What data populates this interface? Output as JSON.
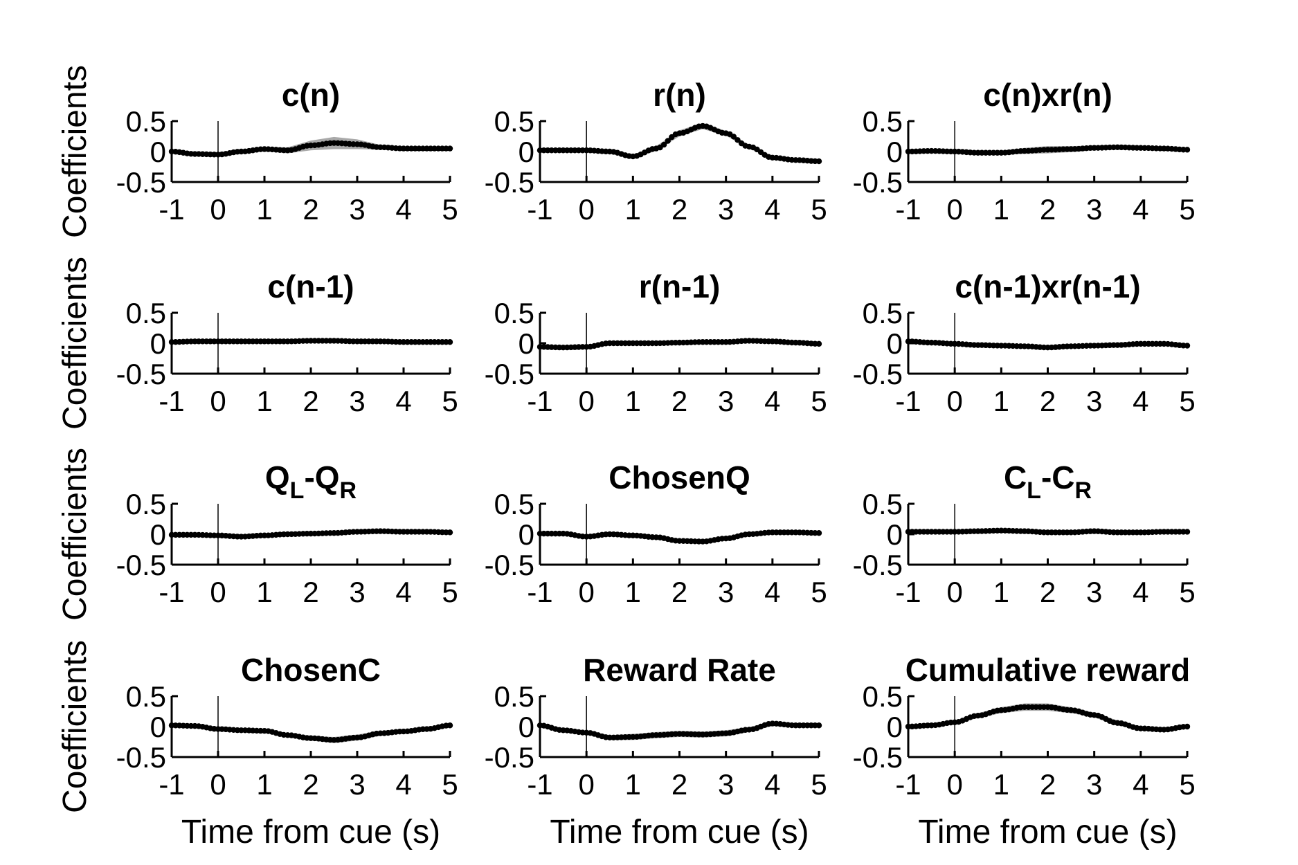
{
  "figure": {
    "ylabel": "Coefficients",
    "xlabel": "Time from cue (s)"
  },
  "chart_data": [
    {
      "type": "line",
      "title": "c(n)",
      "title_parts": [
        {
          "t": "c(n)"
        }
      ],
      "xlabel": "",
      "ylabel": "Coefficients",
      "xlim": [
        -1,
        5
      ],
      "ylim": [
        -0.5,
        0.5
      ],
      "xticks": [
        "-1",
        "0",
        "1",
        "2",
        "3",
        "4",
        "5"
      ],
      "yticks": [
        "0.5",
        "0",
        "-0.5"
      ],
      "x": [
        -1,
        -0.5,
        0,
        0.5,
        1,
        1.5,
        2,
        2.5,
        3,
        3.5,
        4,
        4.5,
        5
      ],
      "values": [
        0,
        -0.04,
        -0.05,
        0.0,
        0.04,
        0.02,
        0.1,
        0.14,
        0.12,
        0.07,
        0.05,
        0.05,
        0.05
      ],
      "band": [
        0.01,
        0.01,
        0.01,
        0.02,
        0.03,
        0.05,
        0.08,
        0.1,
        0.08,
        0.04,
        0.02,
        0.01,
        0.01
      ]
    },
    {
      "type": "line",
      "title": "r(n)",
      "title_parts": [
        {
          "t": "r(n)"
        }
      ],
      "xlabel": "",
      "ylabel": "",
      "xlim": [
        -1,
        5
      ],
      "ylim": [
        -0.5,
        0.5
      ],
      "xticks": [
        "-1",
        "0",
        "1",
        "2",
        "3",
        "4",
        "5"
      ],
      "yticks": [
        "0.5",
        "0",
        "-0.5"
      ],
      "x": [
        -1,
        -0.5,
        0,
        0.5,
        1,
        1.5,
        2,
        2.5,
        3,
        3.5,
        4,
        4.5,
        5
      ],
      "values": [
        0.02,
        0.02,
        0.02,
        0.0,
        -0.08,
        0.05,
        0.3,
        0.42,
        0.3,
        0.08,
        -0.1,
        -0.14,
        -0.16
      ],
      "band": [
        0.01,
        0.01,
        0.01,
        0.02,
        0.03,
        0.04,
        0.05,
        0.05,
        0.04,
        0.03,
        0.02,
        0.02,
        0.02
      ]
    },
    {
      "type": "line",
      "title": "c(n)xr(n)",
      "title_parts": [
        {
          "t": "c(n)xr(n)"
        }
      ],
      "xlabel": "",
      "ylabel": "",
      "xlim": [
        -1,
        5
      ],
      "ylim": [
        -0.5,
        0.5
      ],
      "xticks": [
        "-1",
        "0",
        "1",
        "2",
        "3",
        "4",
        "5"
      ],
      "yticks": [
        "0.5",
        "0",
        "-0.5"
      ],
      "x": [
        -1,
        -0.5,
        0,
        0.5,
        1,
        1.5,
        2,
        2.5,
        3,
        3.5,
        4,
        4.5,
        5
      ],
      "values": [
        0,
        0.01,
        0.0,
        -0.02,
        -0.02,
        0.01,
        0.03,
        0.04,
        0.06,
        0.07,
        0.06,
        0.05,
        0.03
      ],
      "band": [
        0.01,
        0.01,
        0.01,
        0.02,
        0.03,
        0.05,
        0.06,
        0.05,
        0.04,
        0.03,
        0.02,
        0.01,
        0.01
      ]
    },
    {
      "type": "line",
      "title": "c(n-1)",
      "title_parts": [
        {
          "t": "c(n-1)"
        }
      ],
      "xlabel": "",
      "ylabel": "Coefficients",
      "xlim": [
        -1,
        5
      ],
      "ylim": [
        -0.5,
        0.5
      ],
      "xticks": [
        "-1",
        "0",
        "1",
        "2",
        "3",
        "4",
        "5"
      ],
      "yticks": [
        "0.5",
        "0",
        "-0.5"
      ],
      "x": [
        -1,
        -0.5,
        0,
        0.5,
        1,
        1.5,
        2,
        2.5,
        3,
        3.5,
        4,
        4.5,
        5
      ],
      "values": [
        0.02,
        0.03,
        0.03,
        0.03,
        0.03,
        0.03,
        0.04,
        0.04,
        0.03,
        0.03,
        0.02,
        0.02,
        0.02
      ],
      "band": [
        0.01,
        0.01,
        0.01,
        0.01,
        0.01,
        0.01,
        0.01,
        0.01,
        0.01,
        0.01,
        0.01,
        0.01,
        0.01
      ]
    },
    {
      "type": "line",
      "title": "r(n-1)",
      "title_parts": [
        {
          "t": "r(n-1)"
        }
      ],
      "xlabel": "",
      "ylabel": "",
      "xlim": [
        -1,
        5
      ],
      "ylim": [
        -0.5,
        0.5
      ],
      "xticks": [
        "-1",
        "0",
        "1",
        "2",
        "3",
        "4",
        "5"
      ],
      "yticks": [
        "0.5",
        "0",
        "-0.5"
      ],
      "x": [
        -1,
        -0.5,
        0,
        0.5,
        1,
        1.5,
        2,
        2.5,
        3,
        3.5,
        4,
        4.5,
        5
      ],
      "values": [
        -0.06,
        -0.07,
        -0.06,
        0.0,
        0.0,
        0.0,
        0.01,
        0.02,
        0.02,
        0.04,
        0.03,
        0.01,
        -0.01
      ],
      "band": [
        0.01,
        0.01,
        0.01,
        0.01,
        0.01,
        0.01,
        0.01,
        0.01,
        0.01,
        0.01,
        0.01,
        0.01,
        0.01
      ]
    },
    {
      "type": "line",
      "title": "c(n-1)xr(n-1)",
      "title_parts": [
        {
          "t": "c(n-1)xr(n-1)"
        }
      ],
      "xlabel": "",
      "ylabel": "",
      "xlim": [
        -1,
        5
      ],
      "ylim": [
        -0.5,
        0.5
      ],
      "xticks": [
        "-1",
        "0",
        "1",
        "2",
        "3",
        "4",
        "5"
      ],
      "yticks": [
        "0.5",
        "0",
        "-0.5"
      ],
      "x": [
        -1,
        -0.5,
        0,
        0.5,
        1,
        1.5,
        2,
        2.5,
        3,
        3.5,
        4,
        4.5,
        5
      ],
      "values": [
        0.03,
        0.01,
        -0.01,
        -0.03,
        -0.04,
        -0.05,
        -0.07,
        -0.05,
        -0.04,
        -0.03,
        -0.01,
        -0.01,
        -0.04
      ],
      "band": [
        0.01,
        0.01,
        0.01,
        0.01,
        0.01,
        0.01,
        0.01,
        0.01,
        0.01,
        0.01,
        0.01,
        0.01,
        0.01
      ]
    },
    {
      "type": "line",
      "title": "QL-QR",
      "title_parts": [
        {
          "t": "Q"
        },
        {
          "t": "L",
          "sub": true
        },
        {
          "t": "-Q"
        },
        {
          "t": "R",
          "sub": true
        }
      ],
      "xlabel": "",
      "ylabel": "Coefficients",
      "xlim": [
        -1,
        5
      ],
      "ylim": [
        -0.5,
        0.5
      ],
      "xticks": [
        "-1",
        "0",
        "1",
        "2",
        "3",
        "4",
        "5"
      ],
      "yticks": [
        "0.5",
        "0",
        "-0.5"
      ],
      "x": [
        -1,
        -0.5,
        0,
        0.5,
        1,
        1.5,
        2,
        2.5,
        3,
        3.5,
        4,
        4.5,
        5
      ],
      "values": [
        -0.01,
        -0.01,
        -0.02,
        -0.04,
        -0.02,
        0.0,
        0.01,
        0.02,
        0.04,
        0.05,
        0.04,
        0.04,
        0.03
      ],
      "band": [
        0.01,
        0.01,
        0.01,
        0.01,
        0.01,
        0.01,
        0.01,
        0.01,
        0.01,
        0.01,
        0.01,
        0.01,
        0.01
      ]
    },
    {
      "type": "line",
      "title": "ChosenQ",
      "title_parts": [
        {
          "t": "ChosenQ"
        }
      ],
      "xlabel": "",
      "ylabel": "",
      "xlim": [
        -1,
        5
      ],
      "ylim": [
        -0.5,
        0.5
      ],
      "xticks": [
        "-1",
        "0",
        "1",
        "2",
        "3",
        "4",
        "5"
      ],
      "yticks": [
        "0.5",
        "0",
        "-0.5"
      ],
      "x": [
        -1,
        -0.5,
        0,
        0.5,
        1,
        1.5,
        2,
        2.5,
        3,
        3.5,
        4,
        4.5,
        5
      ],
      "values": [
        0.01,
        0.01,
        -0.04,
        0.0,
        -0.02,
        -0.05,
        -0.11,
        -0.12,
        -0.07,
        0.0,
        0.03,
        0.03,
        0.02
      ],
      "band": [
        0.01,
        0.01,
        0.01,
        0.01,
        0.01,
        0.02,
        0.03,
        0.03,
        0.02,
        0.01,
        0.01,
        0.01,
        0.01
      ]
    },
    {
      "type": "line",
      "title": "CL-CR",
      "title_parts": [
        {
          "t": "C"
        },
        {
          "t": "L",
          "sub": true
        },
        {
          "t": "-C"
        },
        {
          "t": "R",
          "sub": true
        }
      ],
      "xlabel": "",
      "ylabel": "",
      "xlim": [
        -1,
        5
      ],
      "ylim": [
        -0.5,
        0.5
      ],
      "xticks": [
        "-1",
        "0",
        "1",
        "2",
        "3",
        "4",
        "5"
      ],
      "yticks": [
        "0.5",
        "0",
        "-0.5"
      ],
      "x": [
        -1,
        -0.5,
        0,
        0.5,
        1,
        1.5,
        2,
        2.5,
        3,
        3.5,
        4,
        4.5,
        5
      ],
      "values": [
        0.04,
        0.04,
        0.04,
        0.05,
        0.06,
        0.05,
        0.03,
        0.03,
        0.05,
        0.03,
        0.03,
        0.04,
        0.04
      ],
      "band": [
        0.01,
        0.01,
        0.01,
        0.01,
        0.01,
        0.01,
        0.01,
        0.01,
        0.01,
        0.01,
        0.01,
        0.01,
        0.01
      ]
    },
    {
      "type": "line",
      "title": "ChosenC",
      "title_parts": [
        {
          "t": "ChosenC"
        }
      ],
      "xlabel": "Time from cue (s)",
      "ylabel": "Coefficients",
      "xlim": [
        -1,
        5
      ],
      "ylim": [
        -0.5,
        0.5
      ],
      "xticks": [
        "-1",
        "0",
        "1",
        "2",
        "3",
        "4",
        "5"
      ],
      "yticks": [
        "0.5",
        "0",
        "-0.5"
      ],
      "x": [
        -1,
        -0.5,
        0,
        0.5,
        1,
        1.5,
        2,
        2.5,
        3,
        3.5,
        4,
        4.5,
        5
      ],
      "values": [
        0.02,
        0.01,
        -0.04,
        -0.06,
        -0.07,
        -0.14,
        -0.19,
        -0.22,
        -0.18,
        -0.11,
        -0.08,
        -0.04,
        0.02
      ],
      "band": [
        0.01,
        0.01,
        0.02,
        0.02,
        0.02,
        0.03,
        0.04,
        0.05,
        0.05,
        0.04,
        0.03,
        0.02,
        0.02
      ]
    },
    {
      "type": "line",
      "title": "Reward Rate",
      "title_parts": [
        {
          "t": "Reward Rate"
        }
      ],
      "xlabel": "Time from cue (s)",
      "ylabel": "",
      "xlim": [
        -1,
        5
      ],
      "ylim": [
        -0.5,
        0.5
      ],
      "xticks": [
        "-1",
        "0",
        "1",
        "2",
        "3",
        "4",
        "5"
      ],
      "yticks": [
        "0.5",
        "0",
        "-0.5"
      ],
      "x": [
        -1,
        -0.5,
        0,
        0.5,
        1,
        1.5,
        2,
        2.5,
        3,
        3.5,
        4,
        4.5,
        5
      ],
      "values": [
        0.02,
        -0.06,
        -0.1,
        -0.18,
        -0.17,
        -0.14,
        -0.12,
        -0.13,
        -0.11,
        -0.05,
        0.05,
        0.02,
        0.02
      ],
      "band": [
        0.01,
        0.02,
        0.03,
        0.04,
        0.05,
        0.05,
        0.05,
        0.05,
        0.05,
        0.04,
        0.04,
        0.03,
        0.03
      ]
    },
    {
      "type": "line",
      "title": "Cumulative reward",
      "title_parts": [
        {
          "t": "Cumulative reward"
        }
      ],
      "xlabel": "Time from cue (s)",
      "ylabel": "",
      "xlim": [
        -1,
        5
      ],
      "ylim": [
        -0.5,
        0.5
      ],
      "xticks": [
        "-1",
        "0",
        "1",
        "2",
        "3",
        "4",
        "5"
      ],
      "yticks": [
        "0.5",
        "0",
        "-0.5"
      ],
      "x": [
        -1,
        -0.5,
        0,
        0.5,
        1,
        1.5,
        2,
        2.5,
        3,
        3.5,
        4,
        4.5,
        5
      ],
      "values": [
        0.0,
        0.02,
        0.07,
        0.18,
        0.27,
        0.32,
        0.32,
        0.27,
        0.19,
        0.06,
        -0.03,
        -0.05,
        0.0
      ],
      "band": [
        0.01,
        0.01,
        0.02,
        0.04,
        0.05,
        0.06,
        0.06,
        0.05,
        0.04,
        0.04,
        0.03,
        0.02,
        0.02
      ]
    }
  ]
}
